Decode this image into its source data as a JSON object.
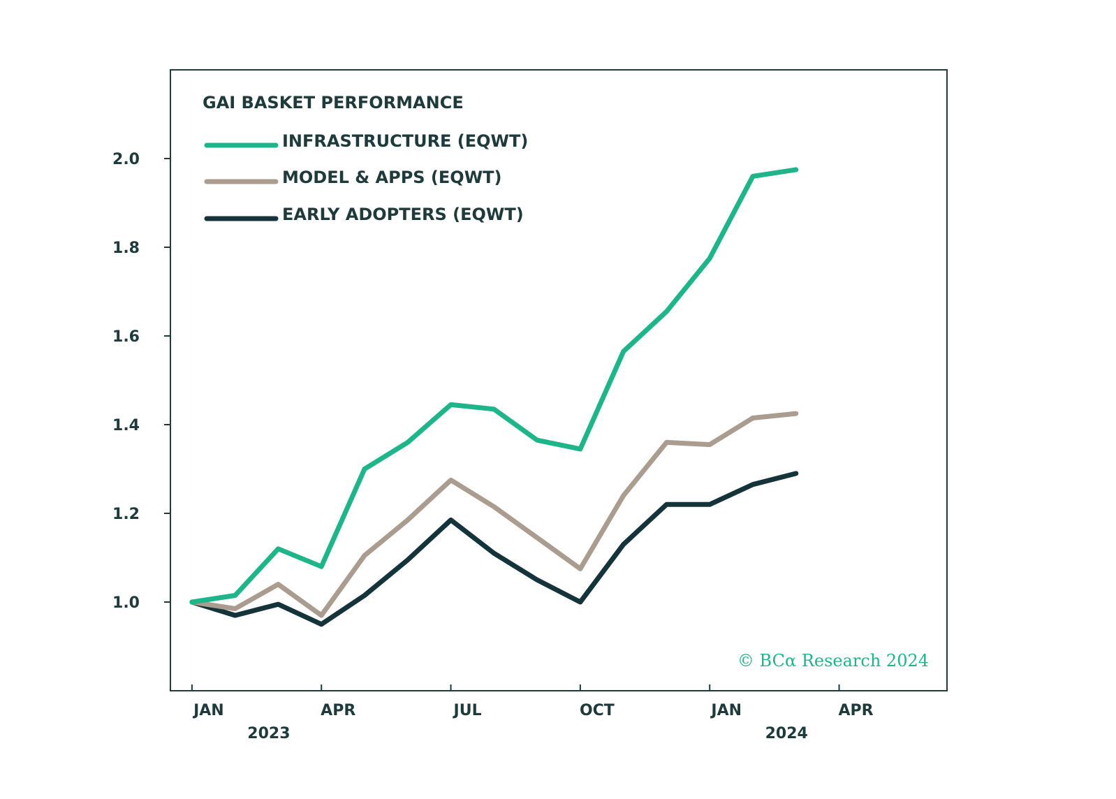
{
  "chart_data": {
    "type": "line",
    "title": "GAI BASKET PERFORMANCE",
    "xlabel": "",
    "ylabel": "",
    "ylim": [
      0.8,
      2.2
    ],
    "yticks": [
      1.0,
      1.2,
      1.4,
      1.6,
      1.8,
      2.0
    ],
    "ytick_labels": [
      "1.0",
      "1.2",
      "1.4",
      "1.6",
      "1.8",
      "2.0"
    ],
    "xticks": [
      {
        "month": 0,
        "label": "JAN",
        "year": "2023"
      },
      {
        "month": 3,
        "label": "APR",
        "year": ""
      },
      {
        "month": 6,
        "label": "JUL",
        "year": ""
      },
      {
        "month": 9,
        "label": "OCT",
        "year": ""
      },
      {
        "month": 12,
        "label": "JAN",
        "year": "2024"
      },
      {
        "month": 15,
        "label": "APR",
        "year": ""
      }
    ],
    "xlim": [
      -0.5,
      17.5
    ],
    "x": [
      0,
      1,
      2,
      3,
      4,
      5,
      6,
      7,
      8,
      9,
      10,
      11,
      12,
      13,
      14
    ],
    "series": [
      {
        "name": "INFRASTRUCTURE (EQWT)",
        "color": "#1fb58a",
        "values": [
          1.0,
          1.015,
          1.12,
          1.08,
          1.3,
          1.36,
          1.445,
          1.435,
          1.365,
          1.345,
          1.565,
          1.655,
          1.775,
          1.96,
          1.975
        ]
      },
      {
        "name": "MODEL & APPS (EQWT)",
        "color": "#aa9d8f",
        "values": [
          1.0,
          0.985,
          1.04,
          0.97,
          1.105,
          1.185,
          1.275,
          1.215,
          1.145,
          1.075,
          1.24,
          1.36,
          1.355,
          1.415,
          1.425
        ]
      },
      {
        "name": "EARLY ADOPTERS (EQWT)",
        "color": "#15333a",
        "values": [
          1.0,
          0.97,
          0.995,
          0.95,
          1.015,
          1.095,
          1.185,
          1.11,
          1.05,
          1.0,
          1.13,
          1.22,
          1.22,
          1.265,
          1.29
        ]
      }
    ],
    "legend_position": "top-left",
    "grid": false,
    "annotation": "© BCα Research 2024",
    "annotation_color": "#1fb58a",
    "axis_color": "#1e3a3a"
  }
}
